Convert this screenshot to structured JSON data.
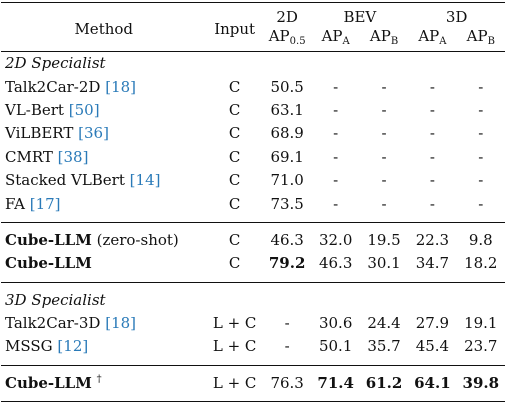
{
  "header": {
    "method": "Method",
    "input": "Input",
    "group_2d": "2D",
    "group_bev": "BEV",
    "group_3d": "3D",
    "ap": "AP",
    "sub_05": "0.5",
    "sub_a": "A",
    "sub_b": "B"
  },
  "sections": {
    "specialist_2d": "2D Specialist",
    "specialist_3d": "3D Specialist"
  },
  "rows": [
    {
      "name": "Talk2Car-2D",
      "cite": "[18]",
      "input": "C",
      "ap2d": "50.5",
      "bev_a": "-",
      "bev_b": "-",
      "d3_a": "-",
      "d3_b": "-"
    },
    {
      "name": "VL-Bert",
      "cite": "[50]",
      "input": "C",
      "ap2d": "63.1",
      "bev_a": "-",
      "bev_b": "-",
      "d3_a": "-",
      "d3_b": "-"
    },
    {
      "name": "ViLBERT",
      "cite": "[36]",
      "input": "C",
      "ap2d": "68.9",
      "bev_a": "-",
      "bev_b": "-",
      "d3_a": "-",
      "d3_b": "-"
    },
    {
      "name": "CMRT",
      "cite": "[38]",
      "input": "C",
      "ap2d": "69.1",
      "bev_a": "-",
      "bev_b": "-",
      "d3_a": "-",
      "d3_b": "-"
    },
    {
      "name": "Stacked VLBert",
      "cite": "[14]",
      "input": "C",
      "ap2d": "71.0",
      "bev_a": "-",
      "bev_b": "-",
      "d3_a": "-",
      "d3_b": "-"
    },
    {
      "name": "FA",
      "cite": "[17]",
      "input": "C",
      "ap2d": "73.5",
      "bev_a": "-",
      "bev_b": "-",
      "d3_a": "-",
      "d3_b": "-"
    }
  ],
  "cube_rows": [
    {
      "name": "Cube-LLM",
      "note": "(zero-shot)",
      "input": "C",
      "ap2d": "46.3",
      "bev_a": "32.0",
      "bev_b": "19.5",
      "d3_a": "22.3",
      "d3_b": "9.8"
    },
    {
      "name": "Cube-LLM",
      "note": "",
      "input": "C",
      "ap2d": "79.2",
      "bev_a": "46.3",
      "bev_b": "30.1",
      "d3_a": "34.7",
      "d3_b": "18.2"
    }
  ],
  "rows_3d": [
    {
      "name": "Talk2Car-3D",
      "cite": "[18]",
      "input": "L + C",
      "ap2d": "-",
      "bev_a": "30.6",
      "bev_b": "24.4",
      "d3_a": "27.9",
      "d3_b": "19.1"
    },
    {
      "name": "MSSG",
      "cite": "[12]",
      "input": "L + C",
      "ap2d": "-",
      "bev_a": "50.1",
      "bev_b": "35.7",
      "d3_a": "45.4",
      "d3_b": "23.7"
    }
  ],
  "final_row": {
    "name": "Cube-LLM",
    "dagger": "†",
    "input": "L + C",
    "ap2d": "76.3",
    "bev_a": "71.4",
    "bev_b": "61.2",
    "d3_a": "64.1",
    "d3_b": "39.8"
  }
}
